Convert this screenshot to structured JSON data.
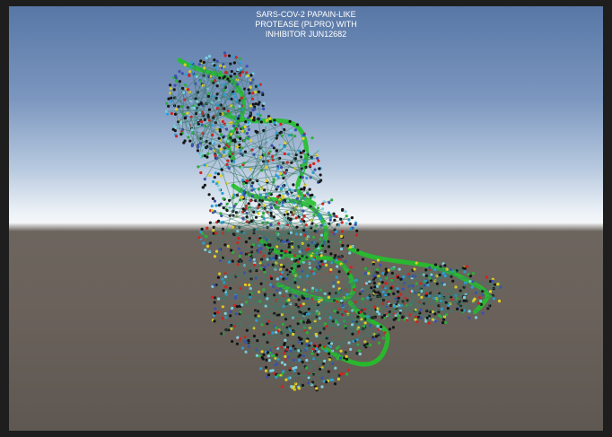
{
  "viewport": {
    "title_lines": [
      "SARS-COV-2 PAPAIN-LIKE",
      "PROTEASE (PLPRO) WITH",
      "INHIBITOR JUN12682"
    ]
  }
}
